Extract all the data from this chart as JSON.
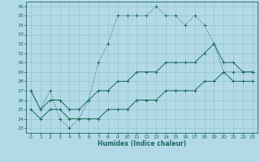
{
  "title": "",
  "xlabel": "Humidex (Indice chaleur)",
  "bg_color": "#b3d9e8",
  "line_color": "#1a6b5a",
  "grid_color": "#8fc4b8",
  "xlim": [
    -0.5,
    23.5
  ],
  "ylim": [
    22.5,
    36.5
  ],
  "xticks": [
    0,
    1,
    2,
    3,
    4,
    5,
    6,
    7,
    8,
    9,
    10,
    11,
    12,
    13,
    14,
    15,
    16,
    17,
    18,
    19,
    20,
    21,
    22,
    23
  ],
  "yticks": [
    23,
    24,
    25,
    26,
    27,
    28,
    29,
    30,
    31,
    32,
    33,
    34,
    35,
    36
  ],
  "line1_x": [
    0,
    1,
    2,
    3,
    4,
    5,
    6,
    7,
    8,
    9,
    10,
    11,
    12,
    13,
    14,
    15,
    16,
    17,
    18,
    19,
    20,
    21,
    22,
    23
  ],
  "line1_y": [
    27,
    25,
    27,
    24,
    23,
    24,
    26,
    30,
    32,
    35,
    35,
    35,
    35,
    36,
    35,
    35,
    34,
    35,
    34,
    32,
    29,
    29,
    29,
    29
  ],
  "line2_x": [
    0,
    1,
    2,
    3,
    4,
    5,
    6,
    7,
    8,
    9,
    10,
    11,
    12,
    13,
    14,
    15,
    16,
    17,
    18,
    19,
    20,
    21,
    22,
    23
  ],
  "line2_y": [
    27,
    25,
    26,
    26,
    25,
    25,
    26,
    27,
    27,
    28,
    28,
    29,
    29,
    29,
    30,
    30,
    30,
    30,
    31,
    32,
    30,
    30,
    29,
    29
  ],
  "line3_x": [
    0,
    1,
    2,
    3,
    4,
    5,
    6,
    7,
    8,
    9,
    10,
    11,
    12,
    13,
    14,
    15,
    16,
    17,
    18,
    19,
    20,
    21,
    22,
    23
  ],
  "line3_y": [
    25,
    24,
    25,
    25,
    24,
    24,
    24,
    24,
    25,
    25,
    25,
    26,
    26,
    26,
    27,
    27,
    27,
    27,
    28,
    28,
    29,
    28,
    28,
    28
  ]
}
